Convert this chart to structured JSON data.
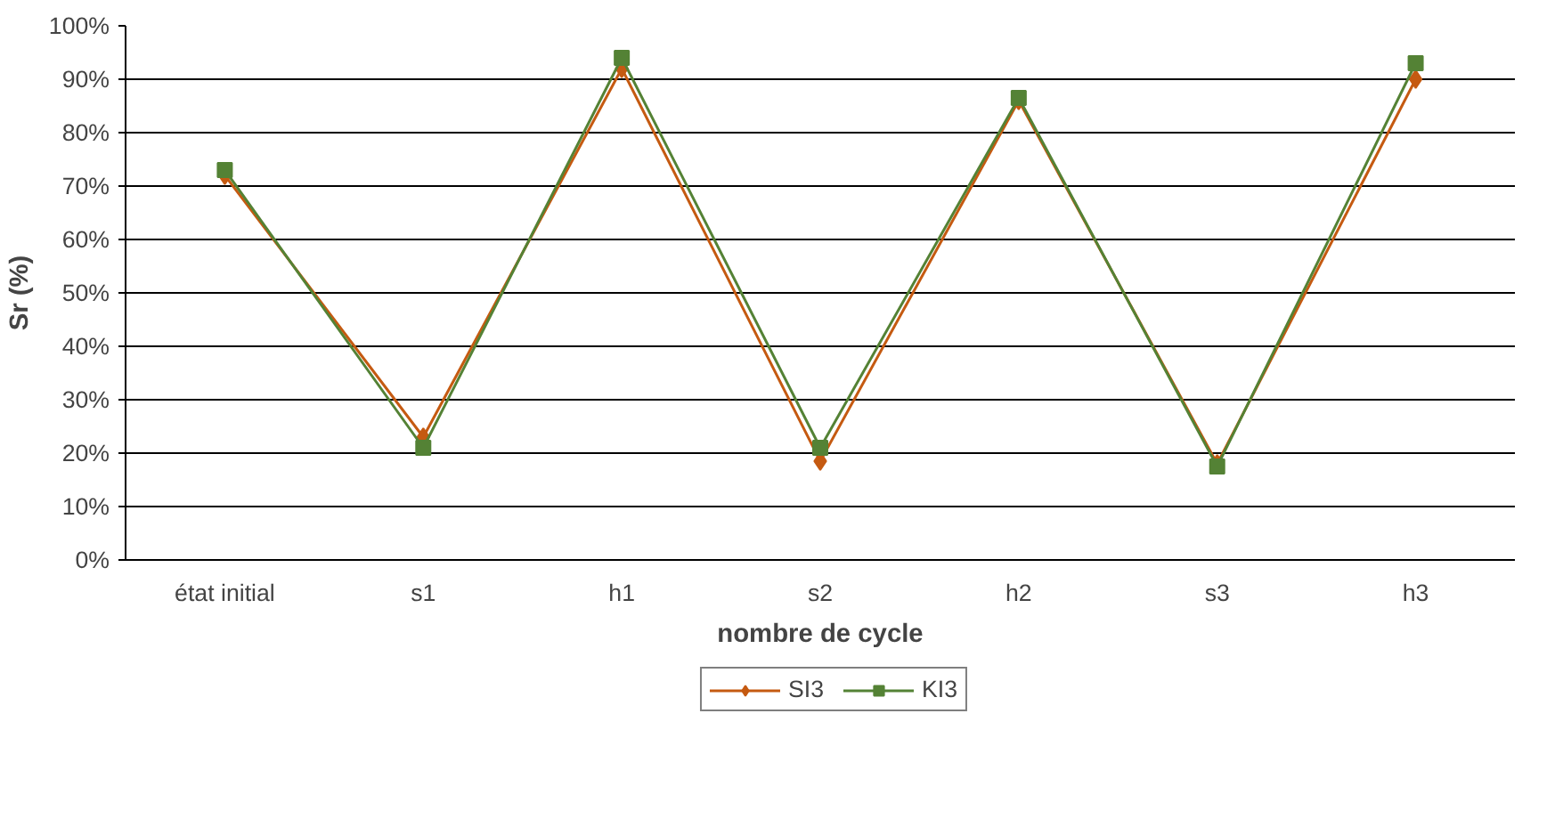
{
  "chart_data": {
    "type": "line",
    "xlabel": "nombre de cycle",
    "ylabel": "Sr (%)",
    "categories": [
      "état initial",
      "s1",
      "h1",
      "s2",
      "h2",
      "s3",
      "h3"
    ],
    "series": [
      {
        "name": "SI3",
        "color": "#c55a11",
        "marker": "diamond",
        "values": [
          72,
          23,
          92,
          18.5,
          86,
          18,
          90
        ]
      },
      {
        "name": "KI3",
        "color": "#548235",
        "marker": "square",
        "values": [
          73,
          21,
          94,
          21,
          86.5,
          17.5,
          93
        ]
      }
    ],
    "ylim": [
      0,
      100
    ],
    "yticks": [
      {
        "value": 0,
        "label": "0%"
      },
      {
        "value": 10,
        "label": "10%"
      },
      {
        "value": 20,
        "label": "20%"
      },
      {
        "value": 30,
        "label": "30%"
      },
      {
        "value": 40,
        "label": "40%"
      },
      {
        "value": 50,
        "label": "50%"
      },
      {
        "value": 60,
        "label": "60%"
      },
      {
        "value": 70,
        "label": "70%"
      },
      {
        "value": 80,
        "label": "80%"
      },
      {
        "value": 90,
        "label": "90%"
      },
      {
        "value": 100,
        "label": "100%"
      }
    ],
    "grid": "y",
    "legend": "bottom",
    "line_style": "solid"
  }
}
